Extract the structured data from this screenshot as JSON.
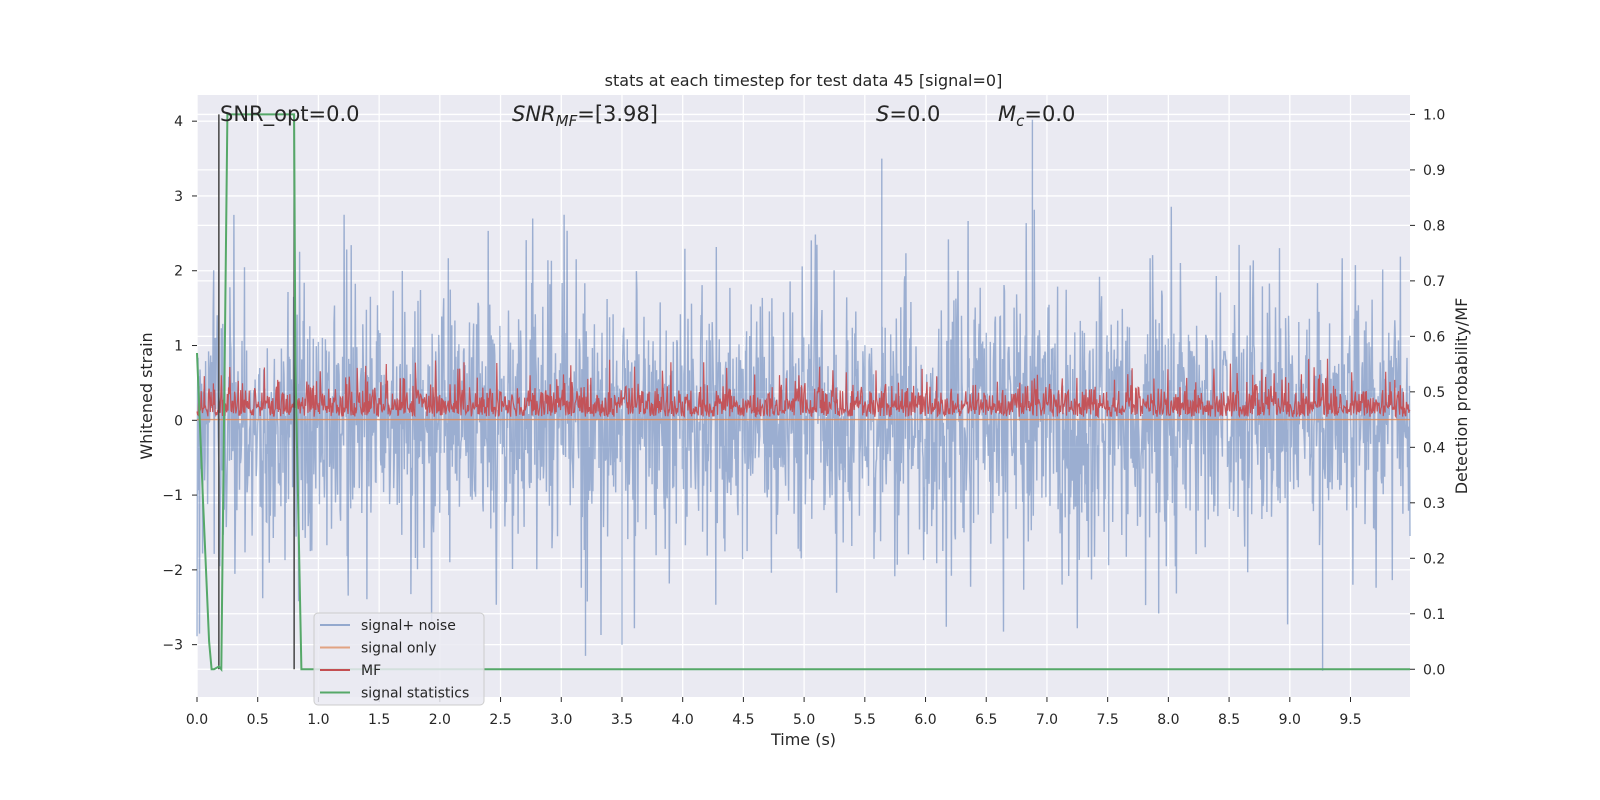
{
  "chart_data": {
    "type": "line",
    "title": "stats at each timestep for test data 45 [signal=0]",
    "xlabel": "Time (s)",
    "ylabel_left": "Whitened strain",
    "ylabel_right": "Detection probability/MF",
    "xlim": [
      0.0,
      9.99
    ],
    "ylim_left": [
      -3.7,
      4.35
    ],
    "ylim_right": [
      -0.05,
      1.035
    ],
    "grid": true,
    "background": "#eaeaf2",
    "x_ticks": [
      {
        "v": 0.0,
        "label": "0.0"
      },
      {
        "v": 0.5,
        "label": "0.5"
      },
      {
        "v": 1.0,
        "label": "1.0"
      },
      {
        "v": 1.5,
        "label": "1.5"
      },
      {
        "v": 2.0,
        "label": "2.0"
      },
      {
        "v": 2.5,
        "label": "2.5"
      },
      {
        "v": 3.0,
        "label": "3.0"
      },
      {
        "v": 3.5,
        "label": "3.5"
      },
      {
        "v": 4.0,
        "label": "4.0"
      },
      {
        "v": 4.5,
        "label": "4.5"
      },
      {
        "v": 5.0,
        "label": "5.0"
      },
      {
        "v": 5.5,
        "label": "5.5"
      },
      {
        "v": 6.0,
        "label": "6.0"
      },
      {
        "v": 6.5,
        "label": "6.5"
      },
      {
        "v": 7.0,
        "label": "7.0"
      },
      {
        "v": 7.5,
        "label": "7.5"
      },
      {
        "v": 8.0,
        "label": "8.0"
      },
      {
        "v": 8.5,
        "label": "8.5"
      },
      {
        "v": 9.0,
        "label": "9.0"
      },
      {
        "v": 9.5,
        "label": "9.5"
      }
    ],
    "y_ticks_left": [
      {
        "v": -3,
        "label": "−3"
      },
      {
        "v": -2,
        "label": "−2"
      },
      {
        "v": -1,
        "label": "−1"
      },
      {
        "v": 0,
        "label": "0"
      },
      {
        "v": 1,
        "label": "1"
      },
      {
        "v": 2,
        "label": "2"
      },
      {
        "v": 3,
        "label": "3"
      },
      {
        "v": 4,
        "label": "4"
      }
    ],
    "y_ticks_right": [
      {
        "v": 0.0,
        "label": "0.0"
      },
      {
        "v": 0.1,
        "label": "0.1"
      },
      {
        "v": 0.2,
        "label": "0.2"
      },
      {
        "v": 0.3,
        "label": "0.3"
      },
      {
        "v": 0.4,
        "label": "0.4"
      },
      {
        "v": 0.5,
        "label": "0.5"
      },
      {
        "v": 0.6,
        "label": "0.6"
      },
      {
        "v": 0.7,
        "label": "0.7"
      },
      {
        "v": 0.8,
        "label": "0.8"
      },
      {
        "v": 0.9,
        "label": "0.9"
      },
      {
        "v": 1.0,
        "label": "1.0"
      }
    ],
    "annotations": {
      "snr_opt": "SNR_opt=0.0",
      "snr_mf_sym": "SNR",
      "snr_mf_sub": "MF",
      "snr_mf_val": "=[3.98]",
      "s_sym": "S",
      "s_val": "=0.0",
      "mc_sym": "M",
      "mc_sub": "c",
      "mc_val": "=0.0"
    },
    "legend_placement": "lower-left",
    "series": [
      {
        "name": "signal+ noise",
        "axis": "left",
        "color": "#4c72b0",
        "style": "dense noise trace, roughly within ±2.3",
        "spikes": [
          {
            "x": 5.64,
            "y": 3.5
          },
          {
            "x": 6.88,
            "y": 4.02
          },
          {
            "x": 9.27,
            "y": -3.35
          },
          {
            "x": 3.2,
            "y": -3.15
          },
          {
            "x": 3.5,
            "y": -3.0
          }
        ]
      },
      {
        "name": "signal only",
        "axis": "right",
        "color": "#dd8452",
        "constant": 0.45
      },
      {
        "name": "MF",
        "axis": "right",
        "color": "#c44e52",
        "style": "dense trace between about 0.45 and 0.56"
      },
      {
        "name": "signal statistics",
        "axis": "right",
        "color": "#55a868",
        "x": [
          0.0,
          0.05,
          0.1,
          0.12,
          0.14,
          0.18,
          0.2,
          0.25,
          0.8,
          0.81,
          0.86,
          9.99
        ],
        "y": [
          0.57,
          0.3,
          0.05,
          0.0,
          0.0,
          0.005,
          0.0,
          1.0,
          1.0,
          0.55,
          0.0,
          0.0
        ]
      }
    ],
    "vertical_lines": [
      {
        "x": 0.18,
        "color": "#444444"
      },
      {
        "x": 0.8,
        "color": "#444444"
      }
    ]
  }
}
